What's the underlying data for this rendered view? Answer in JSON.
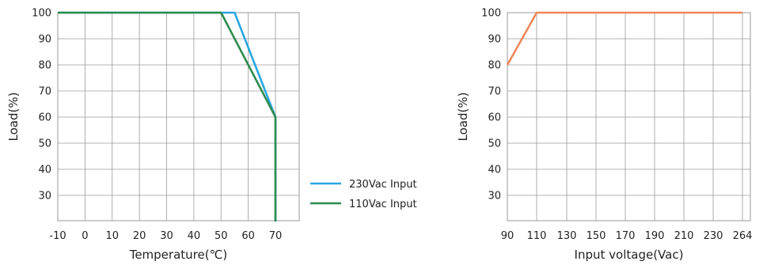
{
  "chart_data": [
    {
      "type": "line",
      "xlabel": "Temperature(℃)",
      "ylabel": "Load(%)",
      "x_ticks": [
        "-10",
        "0",
        "10",
        "20",
        "30",
        "40",
        "50",
        "60",
        "70"
      ],
      "y_ticks": [
        "100",
        "90",
        "80",
        "70",
        "60",
        "50",
        "40",
        "30"
      ],
      "xlim": [
        -10,
        80
      ],
      "ylim": [
        20,
        100
      ],
      "grid": true,
      "legend_position": "right",
      "series": [
        {
          "name": "230Vac Input",
          "color": "#29a7df",
          "x": [
            -10,
            55,
            70,
            70
          ],
          "y": [
            100,
            100,
            60,
            20
          ]
        },
        {
          "name": "110Vac Input",
          "color": "#2e8b4e",
          "x": [
            -10,
            50,
            70,
            70
          ],
          "y": [
            100,
            100,
            60,
            20
          ]
        }
      ]
    },
    {
      "type": "line",
      "xlabel": "Input voltage(Vac)",
      "ylabel": "Load(%)",
      "x_ticks": [
        "90",
        "110",
        "130",
        "150",
        "170",
        "190",
        "210",
        "230",
        "264"
      ],
      "y_ticks": [
        "100",
        "90",
        "80",
        "70",
        "60",
        "50",
        "40",
        "30"
      ],
      "xlim": [
        90,
        264
      ],
      "ylim": [
        20,
        100
      ],
      "grid": true,
      "series": [
        {
          "color": "#f0875a",
          "x": [
            90,
            110,
            264
          ],
          "y": [
            80,
            100,
            100
          ]
        }
      ]
    }
  ]
}
